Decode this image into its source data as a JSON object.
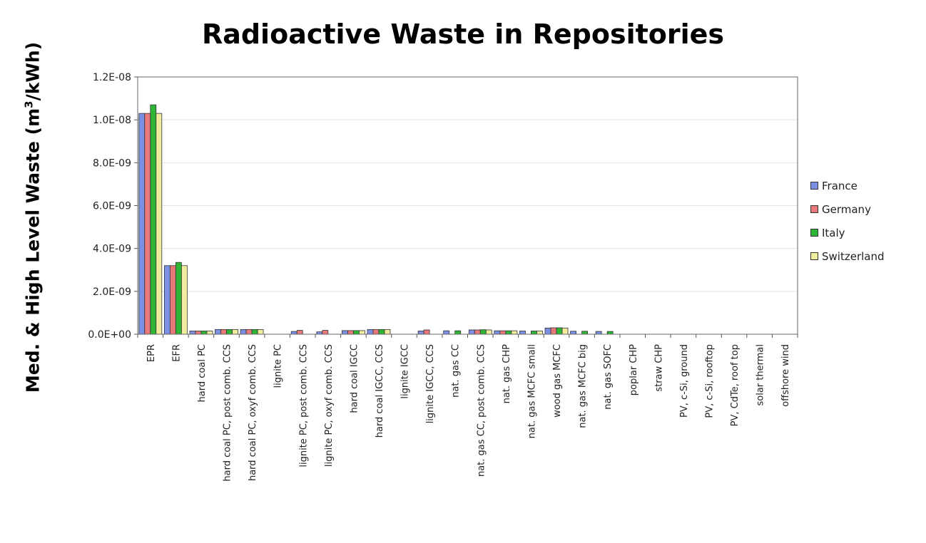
{
  "chart_data": {
    "type": "bar",
    "title": "Radioactive Waste in Repositories",
    "ylabel_pre": "Med. & High Level Waste (m",
    "ylabel_sup": "3",
    "ylabel_post": "/kWh)",
    "xlabel": "",
    "ylim": [
      0,
      1.2e-08
    ],
    "yticks": [
      0,
      2e-09,
      4e-09,
      6e-09,
      8e-09,
      1e-08,
      1.2e-08
    ],
    "ytick_labels": [
      "0.0E+00",
      "2.0E-09",
      "4.0E-09",
      "6.0E-09",
      "8.0E-09",
      "1.0E-08",
      "1.2E-08"
    ],
    "grid": true,
    "legend_position": "right",
    "categories": [
      "EPR",
      "EFR",
      "hard coal PC",
      "hard coal PC, post comb. CCS",
      "hard coal PC, oxyf comb. CCS",
      "lignite PC",
      "lignite PC, post comb. CCS",
      "lignite PC, oxyf comb. CCS",
      "hard coal IGCC",
      "hard coal IGCC, CCS",
      "lignite IGCC",
      "lignite IGCC, CCS",
      "nat. gas CC",
      "nat. gas CC, post comb. CCS",
      "nat. gas CHP",
      "nat. gas MCFC small",
      "wood gas MCFC",
      "nat. gas MCFC big",
      "nat. gas SOFC",
      "poplar CHP",
      "straw CHP",
      "PV, c-Si, ground",
      "PV, c-Si, rooftop",
      "PV, CdTe, roof top",
      "solar thermal",
      "offshore wind"
    ],
    "series": [
      {
        "name": "France",
        "color": "#7b8fe3",
        "values": [
          1.03e-08,
          3.2e-09,
          1.5e-10,
          2.2e-10,
          2.2e-10,
          0,
          1.3e-10,
          1.1e-10,
          1.7e-10,
          2.2e-10,
          0,
          1.5e-10,
          1.6e-10,
          2e-10,
          1.6e-10,
          1.5e-10,
          2.9e-10,
          1.4e-10,
          1.3e-10,
          0,
          0,
          0,
          0,
          0,
          0,
          0
        ]
      },
      {
        "name": "Germany",
        "color": "#e8797a",
        "values": [
          1.03e-08,
          3.2e-09,
          1.5e-10,
          2.2e-10,
          2.2e-10,
          0,
          1.8e-10,
          1.8e-10,
          1.7e-10,
          2.2e-10,
          0,
          2e-10,
          0,
          2e-10,
          1.6e-10,
          0,
          3e-10,
          0,
          0,
          0,
          0,
          0,
          0,
          0,
          0,
          0
        ]
      },
      {
        "name": "Italy",
        "color": "#2fb535",
        "values": [
          1.07e-08,
          3.35e-09,
          1.5e-10,
          2.2e-10,
          2.2e-10,
          0,
          0,
          0,
          1.7e-10,
          2.2e-10,
          0,
          0,
          1.6e-10,
          2.1e-10,
          1.6e-10,
          1.5e-10,
          3e-10,
          1.4e-10,
          1.3e-10,
          0,
          0,
          0,
          0,
          0,
          0,
          0
        ]
      },
      {
        "name": "Switzerland",
        "color": "#f0ee9e",
        "values": [
          1.03e-08,
          3.2e-09,
          1.5e-10,
          2.2e-10,
          2.2e-10,
          0,
          0,
          0,
          1.7e-10,
          2.2e-10,
          0,
          0,
          0,
          2e-10,
          1.6e-10,
          1.5e-10,
          2.9e-10,
          0,
          0,
          0,
          0,
          0,
          0,
          0,
          0,
          0
        ]
      }
    ]
  }
}
